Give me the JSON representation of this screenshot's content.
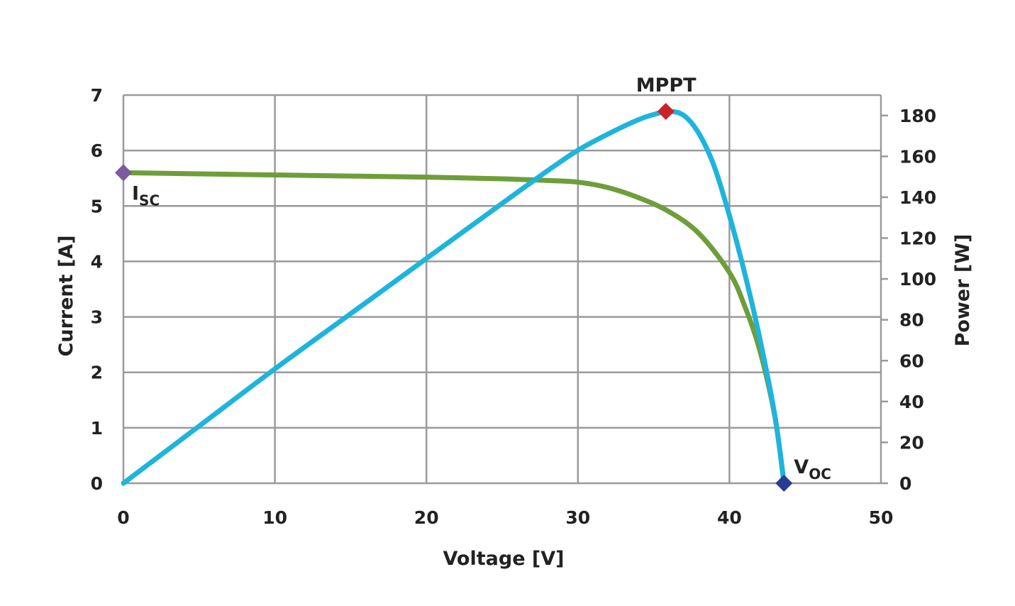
{
  "chart_data": {
    "type": "line",
    "xlabel": "Voltage [V]",
    "ylabel": "Current [A]",
    "y2label": "Power [W]",
    "xlim": [
      0,
      50
    ],
    "ylim": [
      0,
      7
    ],
    "y2lim": [
      0,
      190
    ],
    "x_ticks": [
      "0",
      "10",
      "20",
      "30",
      "40",
      "50"
    ],
    "y_ticks": [
      "0",
      "1",
      "2",
      "3",
      "4",
      "5",
      "6",
      "7"
    ],
    "y2_ticks": [
      "0",
      "20",
      "40",
      "60",
      "80",
      "100",
      "120",
      "140",
      "160",
      "180"
    ],
    "grid": true,
    "series": [
      {
        "axis": "left",
        "color": "#6e9e3a",
        "x": [
          0,
          5,
          10,
          15,
          20,
          25,
          28,
          30,
          32,
          34,
          36,
          38,
          40,
          41,
          42,
          43,
          43.6
        ],
        "y": [
          5.6,
          5.58,
          5.56,
          5.54,
          5.52,
          5.49,
          5.46,
          5.43,
          5.33,
          5.15,
          4.9,
          4.5,
          3.8,
          3.2,
          2.4,
          1.2,
          0
        ]
      },
      {
        "axis": "right",
        "color": "#1eb4dc",
        "x": [
          0,
          5,
          10,
          15,
          20,
          25,
          28,
          30,
          32,
          34,
          35,
          36,
          37,
          38,
          39,
          40,
          41,
          42,
          43,
          43.6
        ],
        "y": [
          0,
          28,
          56,
          83,
          110,
          137,
          153,
          163,
          171,
          178,
          180.5,
          182,
          180,
          171,
          155,
          131,
          103,
          71,
          33,
          0
        ]
      }
    ],
    "markers": [
      {
        "label_main": "I",
        "label_sub": "SC",
        "x": 0,
        "y": 5.6,
        "axis": "left",
        "color": "#7b5aa0"
      },
      {
        "label_main": "MPPT",
        "label_sub": "",
        "x": 35.8,
        "y": 182,
        "axis": "right",
        "color": "#cc2229"
      },
      {
        "label_main": "V",
        "label_sub": "OC",
        "x": 43.6,
        "y": 0,
        "axis": "left",
        "color": "#283c96"
      }
    ]
  }
}
